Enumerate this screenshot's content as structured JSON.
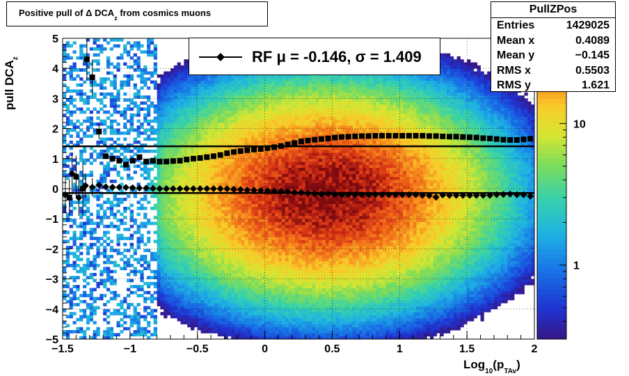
{
  "title": {
    "prefix": "Positive pull of ",
    "delta": "Δ",
    "mid": " DCA",
    "sub": "z",
    "suffix": "  from cosmics muons"
  },
  "stats": {
    "name": "PullZPos",
    "rows": [
      {
        "label": "Entries",
        "value": "1429025"
      },
      {
        "label": "Mean x",
        "value": "0.4089"
      },
      {
        "label": "Mean y",
        "value": "−0.145"
      },
      {
        "label": "RMS x",
        "value": "0.5503"
      },
      {
        "label": "RMS y",
        "value": "1.621"
      }
    ]
  },
  "legend": {
    "text": "RF μ = -0.146, σ =   1.409"
  },
  "axes": {
    "ylabel": "pull DCA",
    "ylabel_sub": "z",
    "xlabel_pre": "Log",
    "xlabel_sub1": "10",
    "xlabel_mid": "(p",
    "xlabel_sub2": "TAv",
    "xlabel_post": ")"
  },
  "colors": {
    "mean_line": "#000000",
    "frame": "#000000"
  },
  "chart_data": {
    "type": "heatmap",
    "xlim": [
      -1.5,
      2
    ],
    "ylim": [
      -5,
      5
    ],
    "x_ticks": [
      {
        "v": -1.5,
        "t": "−1.5"
      },
      {
        "v": -1,
        "t": "−1"
      },
      {
        "v": -0.5,
        "t": "−0.5"
      },
      {
        "v": 0,
        "t": "0"
      },
      {
        "v": 0.5,
        "t": "0.5"
      },
      {
        "v": 1,
        "t": "1"
      },
      {
        "v": 1.5,
        "t": "1.5"
      },
      {
        "v": 2,
        "t": "2"
      }
    ],
    "y_ticks": [
      {
        "v": -5,
        "t": "−5"
      },
      {
        "v": -4,
        "t": "−4"
      },
      {
        "v": -3,
        "t": "−3"
      },
      {
        "v": -2,
        "t": "−2"
      },
      {
        "v": -1,
        "t": "−1"
      },
      {
        "v": 0,
        "t": "0"
      },
      {
        "v": 1,
        "t": "1"
      },
      {
        "v": 2,
        "t": "2"
      },
      {
        "v": 3,
        "t": "3"
      },
      {
        "v": 4,
        "t": "4"
      },
      {
        "v": 5,
        "t": "5"
      }
    ],
    "z_scale": "log",
    "z_range": [
      0.3,
      40
    ],
    "z_ticks": [
      {
        "v": 1,
        "t": "1"
      },
      {
        "v": 10,
        "t": "10"
      }
    ],
    "grid": true,
    "density_peak": {
      "x": 0.45,
      "y": -0.15,
      "sigma_x": 0.55,
      "sigma_y": 1.6
    },
    "series": [
      {
        "name": "sigma",
        "marker": "square",
        "x": [
          -1.45,
          -1.4,
          -1.35,
          -1.32,
          -1.28,
          -1.23,
          -1.18,
          -1.13,
          -1.08,
          -1.03,
          -0.98,
          -0.93,
          -0.88,
          -0.83,
          -0.78,
          -0.73,
          -0.68,
          -0.63,
          -0.58,
          -0.53,
          -0.48,
          -0.43,
          -0.38,
          -0.33,
          -0.28,
          -0.23,
          -0.18,
          -0.13,
          -0.08,
          -0.03,
          0.02,
          0.07,
          0.12,
          0.17,
          0.22,
          0.27,
          0.32,
          0.37,
          0.42,
          0.47,
          0.52,
          0.57,
          0.62,
          0.67,
          0.72,
          0.77,
          0.82,
          0.87,
          0.92,
          0.97,
          1.02,
          1.07,
          1.12,
          1.17,
          1.22,
          1.27,
          1.32,
          1.37,
          1.42,
          1.47,
          1.52,
          1.57,
          1.62,
          1.67,
          1.72,
          1.77,
          1.82,
          1.87,
          1.92,
          1.97
        ],
        "values": [
          -0.3,
          0.4,
          0.0,
          4.3,
          3.7,
          1.9,
          1.08,
          1.0,
          0.93,
          0.8,
          0.93,
          1.05,
          0.9,
          0.93,
          0.9,
          0.9,
          0.92,
          0.93,
          0.97,
          1.0,
          1.02,
          1.05,
          1.08,
          1.12,
          1.18,
          1.22,
          1.25,
          1.28,
          1.3,
          1.32,
          1.35,
          1.38,
          1.42,
          1.47,
          1.52,
          1.57,
          1.6,
          1.63,
          1.65,
          1.67,
          1.7,
          1.72,
          1.73,
          1.74,
          1.75,
          1.75,
          1.76,
          1.76,
          1.76,
          1.76,
          1.76,
          1.76,
          1.76,
          1.76,
          1.75,
          1.75,
          1.74,
          1.73,
          1.73,
          1.72,
          1.71,
          1.7,
          1.68,
          1.67,
          1.65,
          1.63,
          1.62,
          1.62,
          1.64,
          1.66
        ],
        "errors": [
          0.6,
          0.7,
          0.9,
          0.7,
          0.6,
          0.25,
          0.08,
          0.05,
          0.04,
          0.03,
          0.03,
          0.02,
          0.02,
          0.02,
          0.02,
          0.01,
          0.01,
          0.01,
          0.01,
          0.01,
          0.01,
          0.01,
          0.01,
          0.01,
          0.01,
          0.01,
          0.01,
          0.01,
          0.01,
          0.01,
          0.01,
          0.01,
          0.01,
          0.01,
          0.01,
          0.01,
          0.01,
          0.01,
          0.01,
          0.01,
          0.01,
          0.01,
          0.01,
          0.01,
          0.01,
          0.01,
          0.01,
          0.01,
          0.01,
          0.01,
          0.01,
          0.01,
          0.01,
          0.01,
          0.01,
          0.01,
          0.01,
          0.01,
          0.01,
          0.01,
          0.01,
          0.01,
          0.01,
          0.01,
          0.01,
          0.01,
          0.01,
          0.01,
          0.01,
          0.01
        ]
      },
      {
        "name": "mean",
        "marker": "diamond",
        "x": [
          -1.48,
          -1.43,
          -1.38,
          -1.33,
          -1.28,
          -1.23,
          -1.18,
          -1.13,
          -1.08,
          -1.03,
          -0.98,
          -0.93,
          -0.88,
          -0.83,
          -0.78,
          -0.73,
          -0.68,
          -0.63,
          -0.58,
          -0.53,
          -0.48,
          -0.43,
          -0.38,
          -0.33,
          -0.28,
          -0.23,
          -0.18,
          -0.13,
          -0.08,
          -0.03,
          0.02,
          0.07,
          0.12,
          0.17,
          0.22,
          0.27,
          0.32,
          0.37,
          0.42,
          0.47,
          0.52,
          0.57,
          0.62,
          0.67,
          0.72,
          0.77,
          0.82,
          0.87,
          0.92,
          0.97,
          1.02,
          1.07,
          1.12,
          1.17,
          1.22,
          1.27,
          1.32,
          1.37,
          1.42,
          1.47,
          1.52,
          1.57,
          1.62,
          1.67,
          1.72,
          1.77,
          1.82,
          1.87,
          1.92,
          1.97
        ],
        "values": [
          -0.2,
          0.5,
          -0.3,
          0.1,
          0.05,
          0.12,
          0.06,
          0.05,
          0.05,
          0.04,
          0.03,
          0.02,
          0.02,
          0.01,
          0.0,
          0.0,
          0.0,
          0.0,
          0.0,
          0.0,
          0.0,
          0.0,
          0.0,
          0.0,
          0.0,
          -0.02,
          -0.03,
          -0.05,
          -0.05,
          -0.06,
          -0.07,
          -0.08,
          -0.09,
          -0.1,
          -0.12,
          -0.13,
          -0.15,
          -0.17,
          -0.18,
          -0.18,
          -0.19,
          -0.2,
          -0.2,
          -0.2,
          -0.2,
          -0.2,
          -0.2,
          -0.2,
          -0.2,
          -0.2,
          -0.2,
          -0.2,
          -0.2,
          -0.22,
          -0.23,
          -0.28,
          -0.21,
          -0.22,
          -0.22,
          -0.22,
          -0.22,
          -0.22,
          -0.22,
          -0.22,
          -0.2,
          -0.19,
          -0.18,
          -0.2,
          -0.2,
          -0.25
        ],
        "errors": [
          0.6,
          0.7,
          0.6,
          0.4,
          0.3,
          0.1,
          0.05,
          0.03,
          0.02,
          0.02,
          0.02,
          0.01,
          0.01,
          0.01,
          0.01,
          0.01,
          0.01,
          0.01,
          0.01,
          0.01,
          0.01,
          0.01,
          0.01,
          0.01,
          0.01,
          0.01,
          0.01,
          0.01,
          0.01,
          0.01,
          0.01,
          0.01,
          0.01,
          0.01,
          0.01,
          0.01,
          0.01,
          0.01,
          0.01,
          0.01,
          0.01,
          0.01,
          0.01,
          0.01,
          0.01,
          0.01,
          0.01,
          0.01,
          0.01,
          0.01,
          0.01,
          0.01,
          0.01,
          0.01,
          0.01,
          0.01,
          0.01,
          0.01,
          0.01,
          0.01,
          0.01,
          0.01,
          0.01,
          0.01,
          0.01,
          0.01,
          0.01,
          0.01,
          0.01,
          0.01
        ]
      }
    ],
    "fit_lines": [
      {
        "name": "sigma-fit",
        "y": 1.409
      },
      {
        "name": "mean-fit",
        "y": -0.146
      }
    ]
  }
}
